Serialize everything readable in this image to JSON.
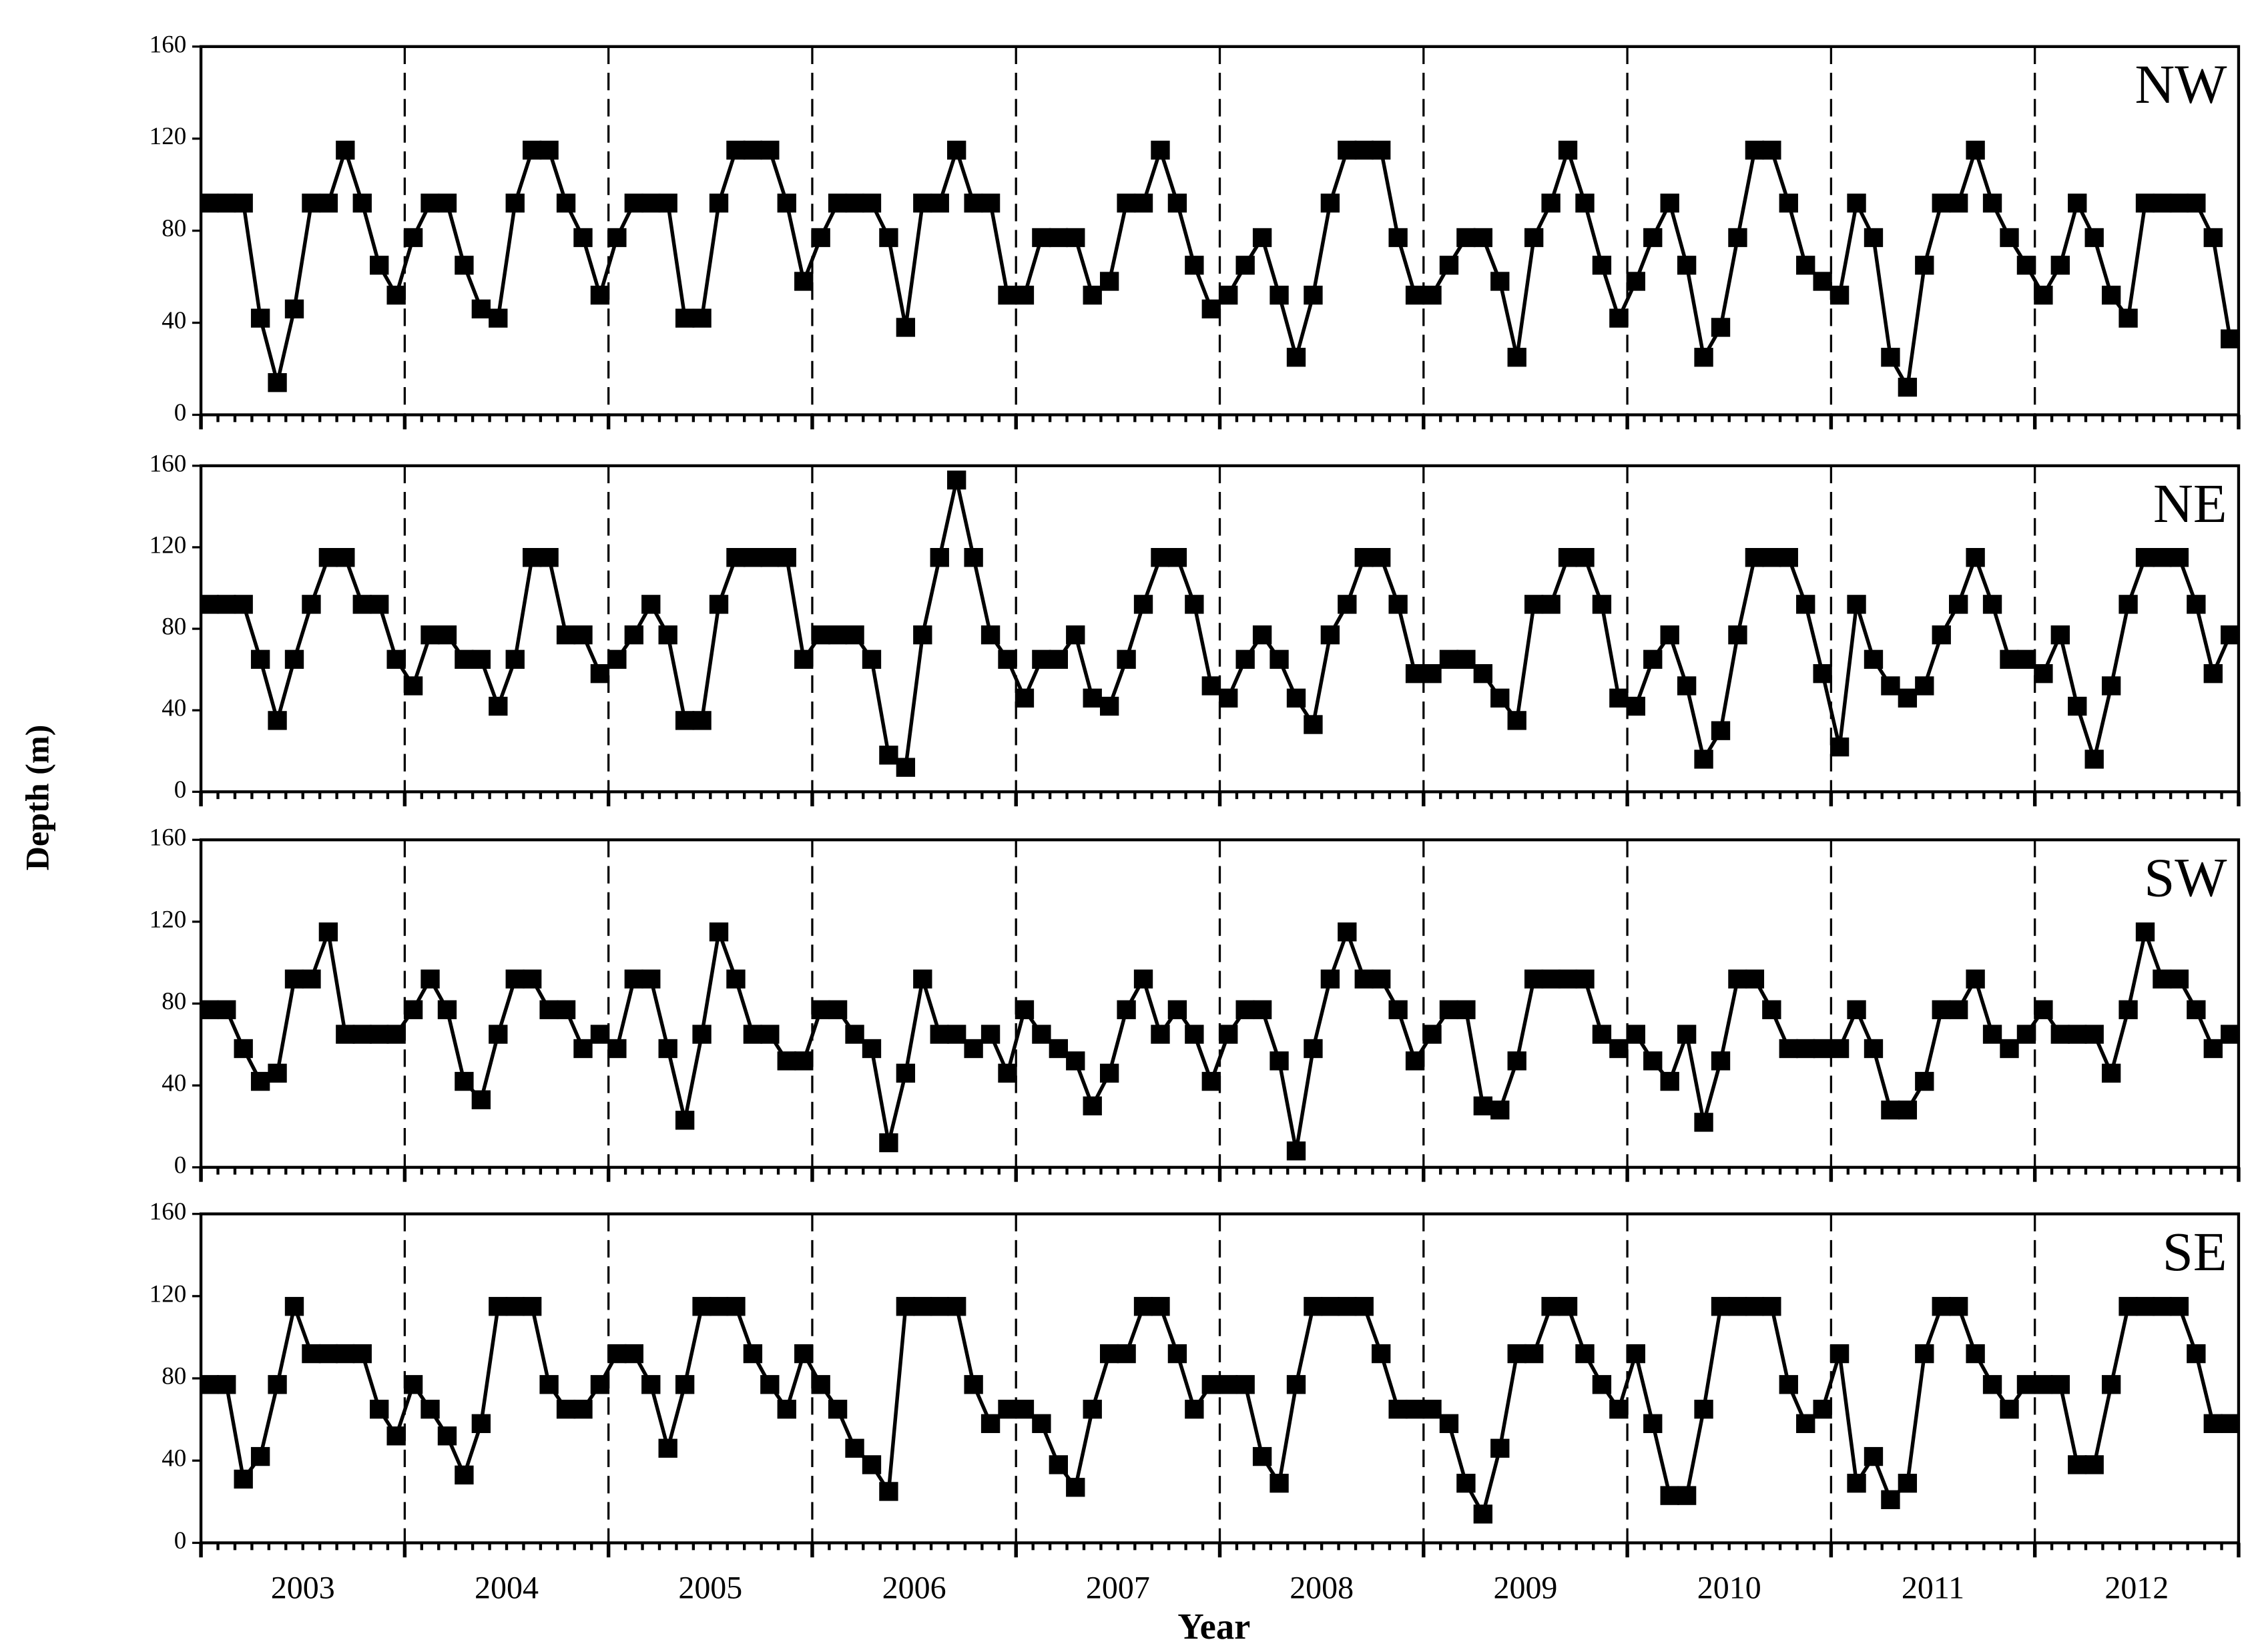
{
  "ylabel": "Depth (m)",
  "xlabel": "Year",
  "categories": [
    "2003",
    "2004",
    "2005",
    "2006",
    "2007",
    "2008",
    "2009",
    "2010",
    "2011",
    "2012"
  ],
  "chart_data": [
    {
      "type": "line",
      "title": "NW",
      "color": "#000000",
      "ylim": [
        0,
        160
      ],
      "yticks": [
        0,
        40,
        80,
        120,
        160
      ],
      "values": [
        92,
        92,
        92,
        42,
        14,
        46,
        92,
        92,
        115,
        92,
        65,
        52,
        77,
        92,
        92,
        65,
        46,
        42,
        92,
        115,
        115,
        92,
        77,
        52,
        77,
        92,
        92,
        92,
        42,
        42,
        92,
        115,
        115,
        115,
        92,
        58,
        77,
        92,
        92,
        92,
        77,
        38,
        92,
        92,
        115,
        92,
        92,
        52,
        52,
        77,
        77,
        77,
        52,
        58,
        92,
        92,
        115,
        92,
        65,
        46,
        52,
        65,
        77,
        52,
        25,
        52,
        92,
        115,
        115,
        115,
        77,
        52,
        52,
        65,
        77,
        77,
        58,
        25,
        77,
        92,
        115,
        92,
        65,
        42,
        58,
        77,
        92,
        65,
        25,
        38,
        77,
        115,
        115,
        92,
        65,
        58,
        52,
        92,
        77,
        25,
        12,
        65,
        92,
        92,
        115,
        92,
        77,
        65,
        52,
        65,
        92,
        77,
        52,
        42,
        92,
        92,
        92,
        92,
        77,
        33
      ]
    },
    {
      "type": "line",
      "title": "NE",
      "color": "#000000",
      "ylim": [
        0,
        160
      ],
      "yticks": [
        0,
        40,
        80,
        120,
        160
      ],
      "values": [
        92,
        92,
        92,
        65,
        35,
        65,
        92,
        115,
        115,
        92,
        92,
        65,
        52,
        77,
        77,
        65,
        65,
        42,
        65,
        115,
        115,
        77,
        77,
        58,
        65,
        77,
        92,
        77,
        35,
        35,
        92,
        115,
        115,
        115,
        115,
        65,
        77,
        77,
        77,
        65,
        18,
        12,
        77,
        115,
        153,
        115,
        77,
        65,
        46,
        65,
        65,
        77,
        46,
        42,
        65,
        92,
        115,
        115,
        92,
        52,
        46,
        65,
        77,
        65,
        46,
        33,
        77,
        92,
        115,
        115,
        92,
        58,
        58,
        65,
        65,
        58,
        46,
        35,
        92,
        92,
        115,
        115,
        92,
        46,
        42,
        65,
        77,
        52,
        16,
        30,
        77,
        115,
        115,
        115,
        92,
        58,
        22,
        92,
        65,
        52,
        46,
        52,
        77,
        92,
        115,
        92,
        65,
        65,
        58,
        77,
        42,
        16,
        52,
        92,
        115,
        115,
        115,
        92,
        58,
        77
      ]
    },
    {
      "type": "line",
      "title": "SW",
      "color": "#000000",
      "ylim": [
        0,
        160
      ],
      "yticks": [
        0,
        40,
        80,
        120,
        160
      ],
      "values": [
        77,
        77,
        58,
        42,
        46,
        92,
        92,
        115,
        65,
        65,
        65,
        65,
        77,
        92,
        77,
        42,
        33,
        65,
        92,
        92,
        77,
        77,
        58,
        65,
        58,
        92,
        92,
        58,
        23,
        65,
        115,
        92,
        65,
        65,
        52,
        52,
        77,
        77,
        65,
        58,
        12,
        46,
        92,
        65,
        65,
        58,
        65,
        46,
        77,
        65,
        58,
        52,
        30,
        46,
        77,
        92,
        65,
        77,
        65,
        42,
        65,
        77,
        77,
        52,
        8,
        58,
        92,
        115,
        92,
        92,
        77,
        52,
        65,
        77,
        77,
        30,
        28,
        52,
        92,
        92,
        92,
        92,
        65,
        58,
        65,
        52,
        42,
        65,
        22,
        52,
        92,
        92,
        77,
        58,
        58,
        58,
        58,
        77,
        58,
        28,
        28,
        42,
        77,
        77,
        92,
        65,
        58,
        65,
        77,
        65,
        65,
        65,
        46,
        77,
        115,
        92,
        92,
        77,
        58,
        65
      ]
    },
    {
      "type": "line",
      "title": "SE",
      "color": "#000000",
      "ylim": [
        0,
        160
      ],
      "yticks": [
        0,
        40,
        80,
        120,
        160
      ],
      "values": [
        77,
        77,
        31,
        42,
        77,
        115,
        92,
        92,
        92,
        92,
        65,
        52,
        77,
        65,
        52,
        33,
        58,
        115,
        115,
        115,
        77,
        65,
        65,
        77,
        92,
        92,
        77,
        46,
        77,
        115,
        115,
        115,
        92,
        77,
        65,
        92,
        77,
        65,
        46,
        38,
        25,
        115,
        115,
        115,
        115,
        77,
        58,
        65,
        65,
        58,
        38,
        27,
        65,
        92,
        92,
        115,
        115,
        92,
        65,
        77,
        77,
        77,
        42,
        29,
        77,
        115,
        115,
        115,
        115,
        92,
        65,
        65,
        65,
        58,
        29,
        14,
        46,
        92,
        92,
        115,
        115,
        92,
        77,
        65,
        92,
        58,
        23,
        23,
        65,
        115,
        115,
        115,
        115,
        77,
        58,
        65,
        92,
        29,
        42,
        21,
        29,
        92,
        115,
        115,
        92,
        77,
        65,
        77,
        77,
        77,
        38,
        38,
        77,
        115,
        115,
        115,
        115,
        92,
        58,
        58
      ]
    }
  ]
}
